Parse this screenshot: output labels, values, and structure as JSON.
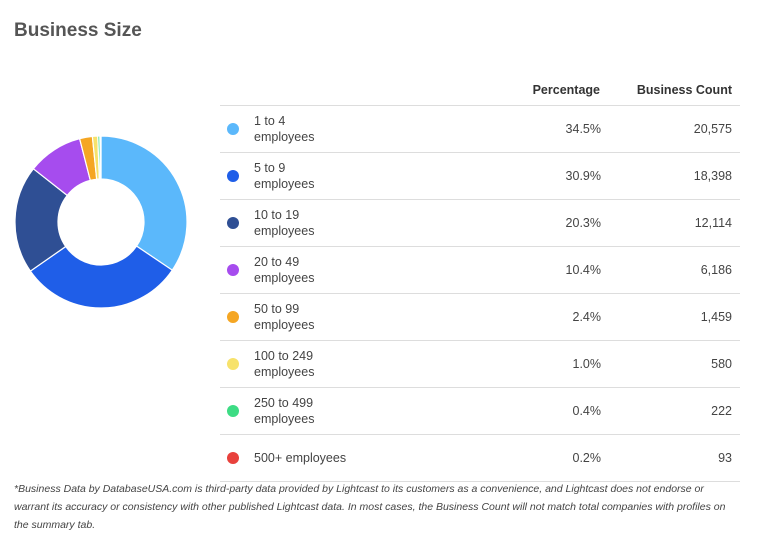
{
  "page": {
    "title": "Business Size",
    "footnote": "*Business Data by DatabaseUSA.com is third-party data provided by Lightcast to its customers as a convenience, and Lightcast does not endorse or warrant its accuracy or consistency with other published Lightcast data. In most cases, the Business Count will not match total companies with profiles on the summary tab."
  },
  "table": {
    "headers": {
      "percentage": "Percentage",
      "count": "Business Count"
    }
  },
  "chart_data": {
    "type": "pie",
    "variant": "donut",
    "title": "Business Size",
    "categories": [
      "1 to 4 employees",
      "5 to 9 employees",
      "10 to 19 employees",
      "20 to 49 employees",
      "50 to 99 employees",
      "100 to 249 employees",
      "250 to 499 employees",
      "500+ employees"
    ],
    "rows": [
      {
        "label_line1": "1 to 4",
        "label_line2": "employees",
        "percentage": "34.5%",
        "pct_value": 34.5,
        "count": "20,575",
        "color": "#5bb8fb"
      },
      {
        "label_line1": "5 to 9",
        "label_line2": "employees",
        "percentage": "30.9%",
        "pct_value": 30.9,
        "count": "18,398",
        "color": "#1f5ee8"
      },
      {
        "label_line1": "10 to 19",
        "label_line2": "employees",
        "percentage": "20.3%",
        "pct_value": 20.3,
        "count": "12,114",
        "color": "#2f4f94"
      },
      {
        "label_line1": "20 to 49",
        "label_line2": "employees",
        "percentage": "10.4%",
        "pct_value": 10.4,
        "count": "6,186",
        "color": "#a64cee"
      },
      {
        "label_line1": "50 to 99",
        "label_line2": "employees",
        "percentage": "2.4%",
        "pct_value": 2.4,
        "count": "1,459",
        "color": "#f5a623"
      },
      {
        "label_line1": "100 to 249",
        "label_line2": "employees",
        "percentage": "1.0%",
        "pct_value": 1.0,
        "count": "580",
        "color": "#f7e26b"
      },
      {
        "label_line1": "250 to 499",
        "label_line2": "employees",
        "percentage": "0.4%",
        "pct_value": 0.4,
        "count": "222",
        "color": "#3ddc84"
      },
      {
        "label_line1": "500+ employees",
        "label_line2": "",
        "percentage": "0.2%",
        "pct_value": 0.2,
        "count": "93",
        "color": "#e8413c"
      }
    ],
    "legend": "table-right"
  }
}
